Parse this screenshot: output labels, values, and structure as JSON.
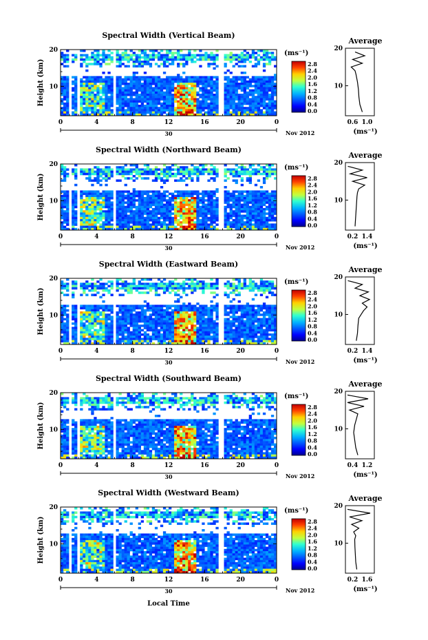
{
  "figure": {
    "xlabel_bottom": "Local Time",
    "date_label": "Nov 2012",
    "day_label": "30",
    "colorbar_unit": "(ms⁻¹)",
    "avg_title": "Average",
    "avg_xlabel": "(ms⁻¹)",
    "ylabel": "Height (km)"
  },
  "chart_data": [
    {
      "type": "heatmap",
      "title": "Spectral Width (Vertical Beam)",
      "xlim": [
        0,
        24
      ],
      "xticks": [
        "0",
        "4",
        "8",
        "12",
        "16",
        "20",
        "0"
      ],
      "ylim": [
        2,
        20
      ],
      "yticks": [
        "20",
        "10"
      ],
      "colorbar": {
        "range": [
          0.0,
          2.8
        ],
        "ticks": [
          "2.8",
          "2.4",
          "2.0",
          "1.6",
          "1.2",
          "0.8",
          "0.4",
          "0.0"
        ]
      },
      "data_gaps_hours": [
        [
          0.9,
          1.1
        ],
        [
          1.7,
          2.0
        ],
        [
          5.8,
          6.1
        ],
        [
          17.6,
          18.0
        ]
      ],
      "average_profile": {
        "xlim": [
          0.6,
          1.2
        ],
        "xticks": [
          "0.6",
          "1.0"
        ],
        "height": [
          3,
          5,
          7,
          9,
          11,
          13,
          14,
          15,
          16,
          17,
          18,
          19
        ],
        "value": [
          0.95,
          0.9,
          0.88,
          0.87,
          0.85,
          0.82,
          0.8,
          0.72,
          0.95,
          0.75,
          1.0,
          0.8
        ]
      }
    },
    {
      "type": "heatmap",
      "title": "Spectral Width (Northward Beam)",
      "xlim": [
        0,
        24
      ],
      "xticks": [
        "0",
        "4",
        "8",
        "12",
        "16",
        "20",
        "0"
      ],
      "ylim": [
        2,
        20
      ],
      "yticks": [
        "20",
        "10"
      ],
      "colorbar": {
        "range": [
          0.0,
          2.8
        ],
        "ticks": [
          "2.8",
          "2.4",
          "2.0",
          "1.6",
          "1.2",
          "0.8",
          "0.4",
          "0.0"
        ]
      },
      "data_gaps_hours": [
        [
          0.9,
          1.1
        ],
        [
          1.7,
          2.0
        ],
        [
          5.8,
          6.1
        ],
        [
          17.6,
          18.0
        ]
      ],
      "average_profile": {
        "xlim": [
          0.2,
          1.4
        ],
        "xticks": [
          "0.2",
          "1.4"
        ],
        "height": [
          3,
          5,
          7,
          9,
          11,
          12,
          13,
          14,
          15,
          16,
          17,
          18,
          19
        ],
        "value": [
          0.6,
          0.62,
          0.64,
          0.66,
          0.68,
          0.7,
          0.75,
          1.0,
          0.5,
          1.1,
          0.4,
          0.9,
          0.3
        ]
      }
    },
    {
      "type": "heatmap",
      "title": "Spectral Width (Eastward Beam)",
      "xlim": [
        0,
        24
      ],
      "xticks": [
        "0",
        "4",
        "8",
        "12",
        "16",
        "20",
        "0"
      ],
      "ylim": [
        2,
        20
      ],
      "yticks": [
        "20",
        "10"
      ],
      "colorbar": {
        "range": [
          0.0,
          2.8
        ],
        "ticks": [
          "2.8",
          "2.4",
          "2.0",
          "1.6",
          "1.2",
          "0.8",
          "0.4",
          "0.0"
        ]
      },
      "data_gaps_hours": [
        [
          0.9,
          1.1
        ],
        [
          1.7,
          2.0
        ],
        [
          5.8,
          6.1
        ],
        [
          17.6,
          18.0
        ]
      ],
      "average_profile": {
        "xlim": [
          0.2,
          1.4
        ],
        "xticks": [
          "0.2",
          "1.4"
        ],
        "height": [
          3,
          5,
          7,
          9,
          10,
          11,
          12,
          13,
          14,
          15,
          16,
          17,
          18,
          19
        ],
        "value": [
          0.65,
          0.7,
          0.72,
          0.75,
          0.85,
          0.95,
          1.1,
          0.9,
          1.2,
          0.8,
          1.15,
          0.6,
          0.9,
          0.3
        ]
      }
    },
    {
      "type": "heatmap",
      "title": "Spectral Width (Southward Beam)",
      "xlim": [
        0,
        24
      ],
      "xticks": [
        "0",
        "4",
        "8",
        "12",
        "16",
        "20",
        "0"
      ],
      "ylim": [
        2,
        20
      ],
      "yticks": [
        "20",
        "10"
      ],
      "colorbar": {
        "range": [
          0.0,
          2.8
        ],
        "ticks": [
          "2.8",
          "2.4",
          "2.0",
          "1.6",
          "1.2",
          "0.8",
          "0.4",
          "0.0"
        ]
      },
      "data_gaps_hours": [
        [
          0.9,
          1.1
        ],
        [
          1.7,
          2.0
        ],
        [
          5.8,
          6.1
        ],
        [
          17.6,
          18.0
        ]
      ],
      "average_profile": {
        "xlim": [
          0.4,
          1.8
        ],
        "xticks": [
          "0.4",
          "1.2"
        ],
        "height": [
          3,
          5,
          7,
          9,
          11,
          12,
          13,
          14,
          15,
          16,
          17,
          18,
          19
        ],
        "value": [
          1.0,
          0.9,
          0.85,
          0.8,
          0.85,
          0.9,
          0.95,
          1.0,
          0.6,
          1.3,
          0.5,
          1.5,
          0.5
        ]
      }
    },
    {
      "type": "heatmap",
      "title": "Spectral Width (Westward Beam)",
      "xlim": [
        0,
        24
      ],
      "xticks": [
        "0",
        "4",
        "8",
        "12",
        "16",
        "20",
        "0"
      ],
      "ylim": [
        2,
        20
      ],
      "yticks": [
        "20",
        "10"
      ],
      "colorbar": {
        "range": [
          0.0,
          2.8
        ],
        "ticks": [
          "2.8",
          "2.4",
          "2.0",
          "1.6",
          "1.2",
          "0.8",
          "0.4",
          "0.0"
        ]
      },
      "data_gaps_hours": [
        [
          0.9,
          1.1
        ],
        [
          1.7,
          2.0
        ],
        [
          5.8,
          6.1
        ],
        [
          17.6,
          18.0
        ]
      ],
      "average_profile": {
        "xlim": [
          0.2,
          1.6
        ],
        "xticks": [
          "0.2",
          "1.6"
        ],
        "height": [
          3,
          5,
          7,
          9,
          11,
          12,
          13,
          14,
          15,
          16,
          17,
          18,
          19
        ],
        "value": [
          0.75,
          0.7,
          0.68,
          0.66,
          0.65,
          0.7,
          0.6,
          0.85,
          0.5,
          1.0,
          0.4,
          1.4,
          0.3
        ]
      }
    }
  ]
}
